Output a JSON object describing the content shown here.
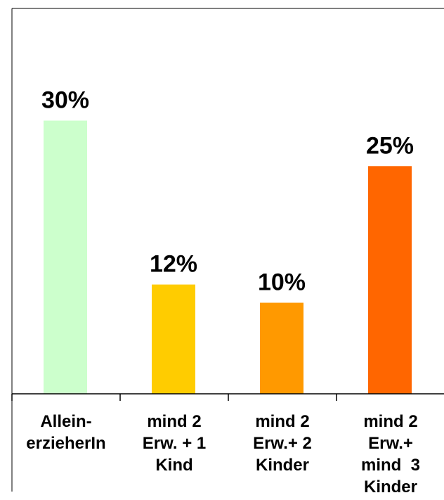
{
  "chart_data": {
    "type": "bar",
    "title": "",
    "xlabel": "",
    "ylabel": "",
    "ylim": [
      0,
      40
    ],
    "grid": false,
    "legend": "none",
    "categories": [
      [
        "Allein-",
        "erzieherIn"
      ],
      [
        "mind 2",
        "Erw. + 1",
        "Kind"
      ],
      [
        "mind 2",
        "Erw.+ 2",
        "Kinder"
      ],
      [
        "mind 2",
        "Erw.+",
        "mind  3",
        "Kinder"
      ]
    ],
    "values": [
      30,
      12,
      10,
      25
    ],
    "data_labels": [
      "30%",
      "12%",
      "10%",
      "25%"
    ],
    "colors": [
      "#ccffcc",
      "#ffcc00",
      "#ff9900",
      "#ff6600"
    ]
  }
}
